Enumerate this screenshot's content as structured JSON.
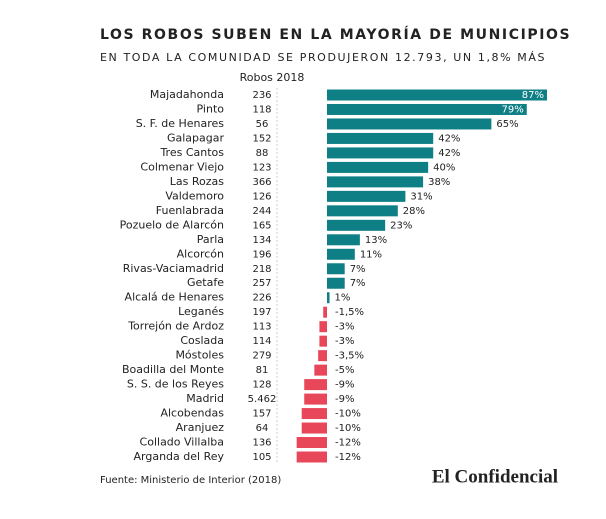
{
  "chart_data": {
    "type": "bar",
    "title": "LOS ROBOS SUBEN EN LA MAYORÍA DE MUNICIPIOS",
    "subtitle": "EN TODA LA COMUNIDAD SE PRODUJERON 12.793, UN 1,8% MÁS",
    "column_header": "Robos 2018",
    "categories": [
      "Majadahonda",
      "Pinto",
      "S. F. de Henares",
      "Galapagar",
      "Tres Cantos",
      "Colmenar Viejo",
      "Las Rozas",
      "Valdemoro",
      "Fuenlabrada",
      "Pozuelo de Alarcón",
      "Parla",
      "Alcorcón",
      "Rivas-Vaciamadrid",
      "Getafe",
      "Alcalá de Henares",
      "Leganés",
      "Torrejón de Ardoz",
      "Coslada",
      "Móstoles",
      "Boadilla del Monte",
      "S. S. de los Reyes",
      "Madrid",
      "Alcobendas",
      "Aranjuez",
      "Collado Villalba",
      "Arganda del Rey"
    ],
    "robos": [
      "236",
      "118",
      "56",
      "152",
      "88",
      "123",
      "366",
      "126",
      "244",
      "165",
      "134",
      "196",
      "218",
      "257",
      "226",
      "197",
      "113",
      "114",
      "279",
      "81",
      "128",
      "5.462",
      "157",
      "64",
      "136",
      "105"
    ],
    "values": [
      87,
      79,
      65,
      42,
      42,
      40,
      38,
      31,
      28,
      23,
      13,
      11,
      7,
      7,
      1,
      -1.5,
      -3,
      -3,
      -3.5,
      -5,
      -9,
      -9,
      -10,
      -10,
      -12,
      -12
    ],
    "value_labels": [
      "87%",
      "79%",
      "65%",
      "42%",
      "42%",
      "40%",
      "38%",
      "31%",
      "28%",
      "23%",
      "13%",
      "11%",
      "7%",
      "7%",
      "1%",
      "-1,5%",
      "-3%",
      "-3%",
      "-3,5%",
      "-5%",
      "-9%",
      "-9%",
      "-10%",
      "-10%",
      "-12%",
      "-12%"
    ],
    "positive_color": "#0f7f86",
    "negative_color": "#e8475a",
    "source": "Fuente: Ministerio de Interior (2018)",
    "brand": "El Confidencial"
  }
}
